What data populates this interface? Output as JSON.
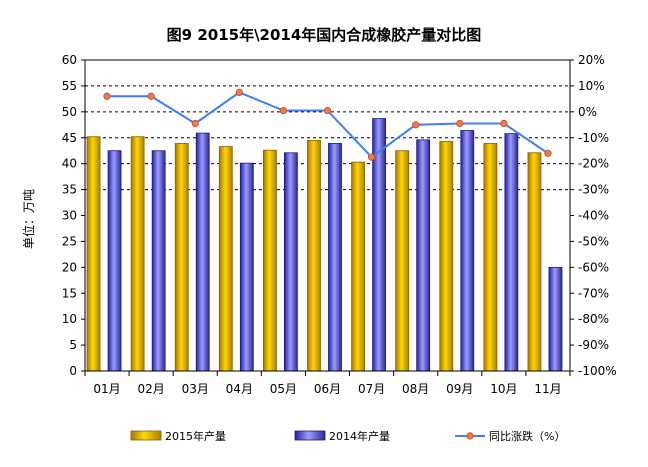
{
  "chart_data": {
    "type": "bar",
    "title": "图9 2015年\\2014年国内合成橡胶产量对比图",
    "ylabel": "单位：万吨",
    "categories": [
      "01月",
      "02月",
      "03月",
      "04月",
      "05月",
      "06月",
      "07月",
      "08月",
      "09月",
      "10月",
      "11月"
    ],
    "ylim": [
      0,
      60
    ],
    "y_ticks": [
      "0",
      "5",
      "10",
      "15",
      "20",
      "25",
      "30",
      "35",
      "40",
      "45",
      "50",
      "55",
      "60"
    ],
    "y2lim": [
      -100,
      20
    ],
    "y2_ticks": [
      "-100%",
      "-90%",
      "-80%",
      "-70%",
      "-60%",
      "-50%",
      "-40%",
      "-30%",
      "-20%",
      "-10%",
      "0%",
      "10%",
      "20%"
    ],
    "grid": "dashed horizontal lines from 35 to 55",
    "series": [
      {
        "name": "2015年产量",
        "kind": "bar",
        "color": "#e8a400",
        "values": [
          45.2,
          45.2,
          43.9,
          43.3,
          42.6,
          44.5,
          40.3,
          42.5,
          44.3,
          43.9,
          42.1
        ]
      },
      {
        "name": "2014年产量",
        "kind": "bar",
        "color": "#4b4bd6",
        "values": [
          42.5,
          42.5,
          45.9,
          40.1,
          42.1,
          43.9,
          48.7,
          44.6,
          46.4,
          45.8,
          20.0
        ]
      },
      {
        "name": "同比涨跌（%）",
        "kind": "line",
        "axis": "right",
        "color": "#3f7fef",
        "marker_color": "#f07b4a",
        "values": [
          6.0,
          6.0,
          -4.5,
          7.5,
          0.5,
          0.5,
          -17.5,
          -5.0,
          -4.5,
          -4.5,
          -16.0
        ]
      }
    ],
    "legend_position": "bottom"
  }
}
